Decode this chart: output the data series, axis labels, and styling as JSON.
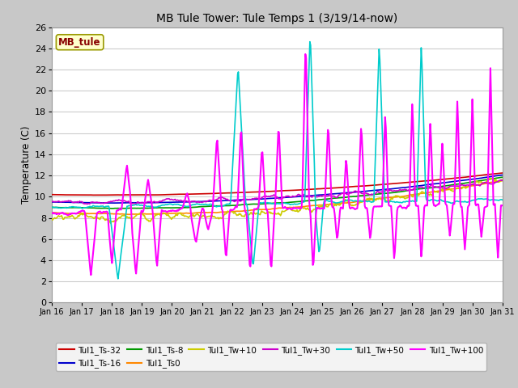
{
  "title": "MB Tule Tower: Tule Temps 1 (3/19/14-now)",
  "ylabel": "Temperature (C)",
  "xlim": [
    0,
    15
  ],
  "ylim": [
    0,
    26
  ],
  "yticks": [
    0,
    2,
    4,
    6,
    8,
    10,
    12,
    14,
    16,
    18,
    20,
    22,
    24,
    26
  ],
  "xtick_labels": [
    "Jan 16",
    "Jan 17",
    "Jan 18",
    "Jan 19",
    "Jan 20",
    "Jan 21",
    "Jan 22",
    "Jan 23",
    "Jan 24",
    "Jan 25",
    "Jan 26",
    "Jan 27",
    "Jan 28",
    "Jan 29",
    "Jan 30",
    "Jan 31"
  ],
  "fig_bg": "#c8c8c8",
  "plot_bg": "#ffffff",
  "legend_label": "MB_tule",
  "legend_bg": "#ffffcc",
  "legend_edge": "#999900",
  "legend_text_color": "#880000",
  "series": [
    {
      "label": "Tul1_Ts-32",
      "color": "#cc0000",
      "lw": 1.2
    },
    {
      "label": "Tul1_Ts-16",
      "color": "#0000cc",
      "lw": 1.2
    },
    {
      "label": "Tul1_Ts-8",
      "color": "#009900",
      "lw": 1.2
    },
    {
      "label": "Tul1_Ts0",
      "color": "#ff8800",
      "lw": 1.2
    },
    {
      "label": "Tul1_Tw+10",
      "color": "#cccc00",
      "lw": 1.2
    },
    {
      "label": "Tul1_Tw+30",
      "color": "#cc00cc",
      "lw": 1.2
    },
    {
      "label": "Tul1_Tw+50",
      "color": "#00cccc",
      "lw": 1.2
    },
    {
      "label": "Tul1_Tw+100",
      "color": "#ff00ff",
      "lw": 1.5
    }
  ]
}
